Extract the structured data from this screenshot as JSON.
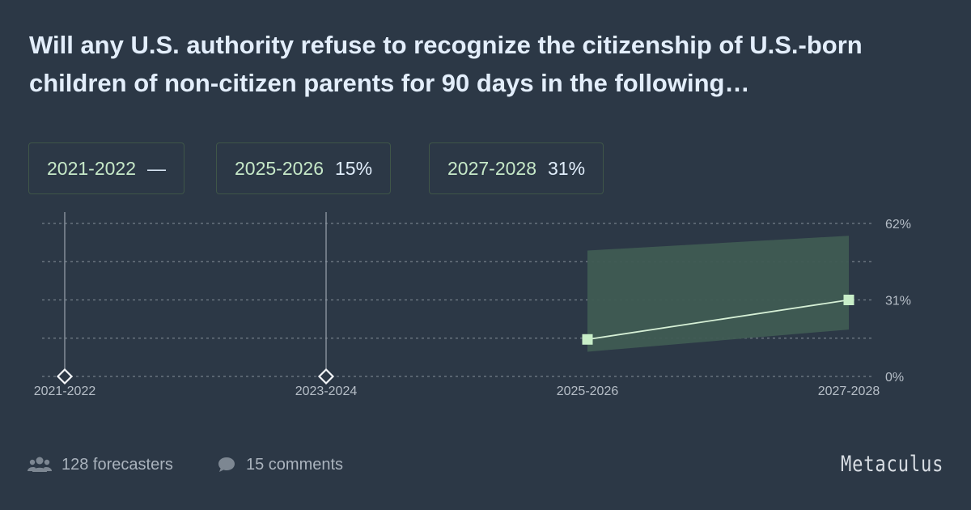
{
  "title": "Will any U.S. authority refuse to recognize the citizenship of U.S.-born children of non-citizen parents for 90 days in the following…",
  "summary": [
    {
      "category": "2021-2022",
      "value": "—"
    },
    {
      "category": "2025-2026",
      "value": "15%"
    },
    {
      "category": "2027-2028",
      "value": "31%"
    }
  ],
  "footer": {
    "forecasters": "128 forecasters",
    "comments": "15 comments",
    "brand": "Metaculus"
  },
  "colors": {
    "background": "#2c3846",
    "line": "#d6f0d6",
    "band": "#3f5b53",
    "marker": "#c8eec8",
    "grid": "#8c96a0"
  },
  "chart_data": {
    "type": "line",
    "categories": [
      "2021-2022",
      "2023-2024",
      "2025-2026",
      "2027-2028"
    ],
    "values": [
      null,
      null,
      15,
      31
    ],
    "band": {
      "categories": [
        "2025-2026",
        "2027-2028"
      ],
      "lower": [
        10,
        19
      ],
      "upper": [
        51,
        57
      ]
    },
    "resolved_markers": [
      "2021-2022",
      "2023-2024"
    ],
    "ylim": [
      0,
      62
    ],
    "yticks": [
      0,
      31,
      62
    ],
    "ytick_labels": [
      "0%",
      "31%",
      "62%"
    ],
    "grid": true
  }
}
